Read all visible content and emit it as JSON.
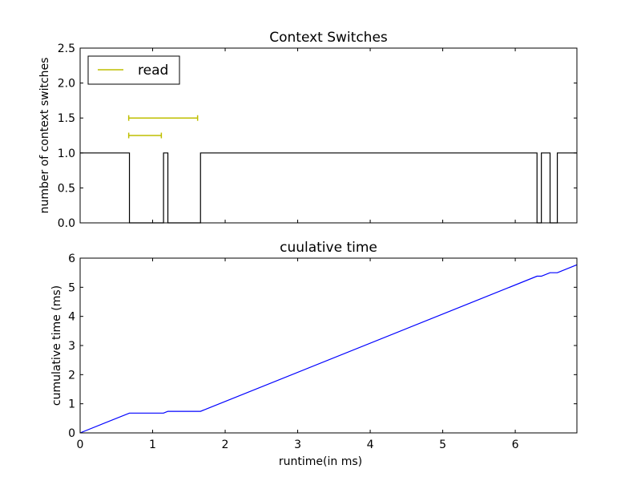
{
  "chart_data": [
    {
      "type": "line",
      "title": "Context Switches",
      "xlabel": "",
      "ylabel": "number of context switches",
      "xlim": [
        0,
        6.85
      ],
      "ylim": [
        0,
        2.5
      ],
      "y_ticks": [
        "0.0",
        "0.5",
        "1.0",
        "1.5",
        "2.0",
        "2.5"
      ],
      "grid": false,
      "legend": {
        "placement": "top-left",
        "entries": [
          {
            "label": "read",
            "color": "#bfbf00"
          }
        ]
      },
      "series": [
        {
          "color": "#000000",
          "style": "step",
          "x": [
            0,
            0.68,
            0.68,
            1.15,
            1.15,
            1.21,
            1.21,
            1.66,
            1.66,
            6.3,
            6.3,
            6.36,
            6.36,
            6.48,
            6.48,
            6.58,
            6.58,
            6.85
          ],
          "y": [
            1,
            1,
            0,
            0,
            1,
            1,
            0,
            0,
            1,
            1,
            0,
            0,
            1,
            1,
            0,
            0,
            1,
            1
          ]
        }
      ],
      "intervals": [
        {
          "name": "read",
          "color": "#bfbf00",
          "y": 1.5,
          "x_start": 0.67,
          "x_end": 1.62
        },
        {
          "name": "read",
          "color": "#bfbf00",
          "y": 1.25,
          "x_start": 0.67,
          "x_end": 1.12
        }
      ]
    },
    {
      "type": "line",
      "title": "cuulative time",
      "xlabel": "runtime(in ms)",
      "ylabel": "cumulative time (ms)",
      "xlim": [
        0,
        6.85
      ],
      "ylim": [
        0,
        6
      ],
      "x_ticks": [
        "0",
        "1",
        "2",
        "3",
        "4",
        "5",
        "6"
      ],
      "y_ticks": [
        "0",
        "1",
        "2",
        "3",
        "4",
        "5",
        "6"
      ],
      "grid": false,
      "series": [
        {
          "color": "#0000ff",
          "x": [
            0,
            0.68,
            1.15,
            1.21,
            1.66,
            6.3,
            6.36,
            6.48,
            6.58,
            6.85
          ],
          "y": [
            0,
            0.68,
            0.68,
            0.74,
            0.74,
            5.38,
            5.38,
            5.5,
            5.5,
            5.77
          ]
        }
      ]
    }
  ]
}
